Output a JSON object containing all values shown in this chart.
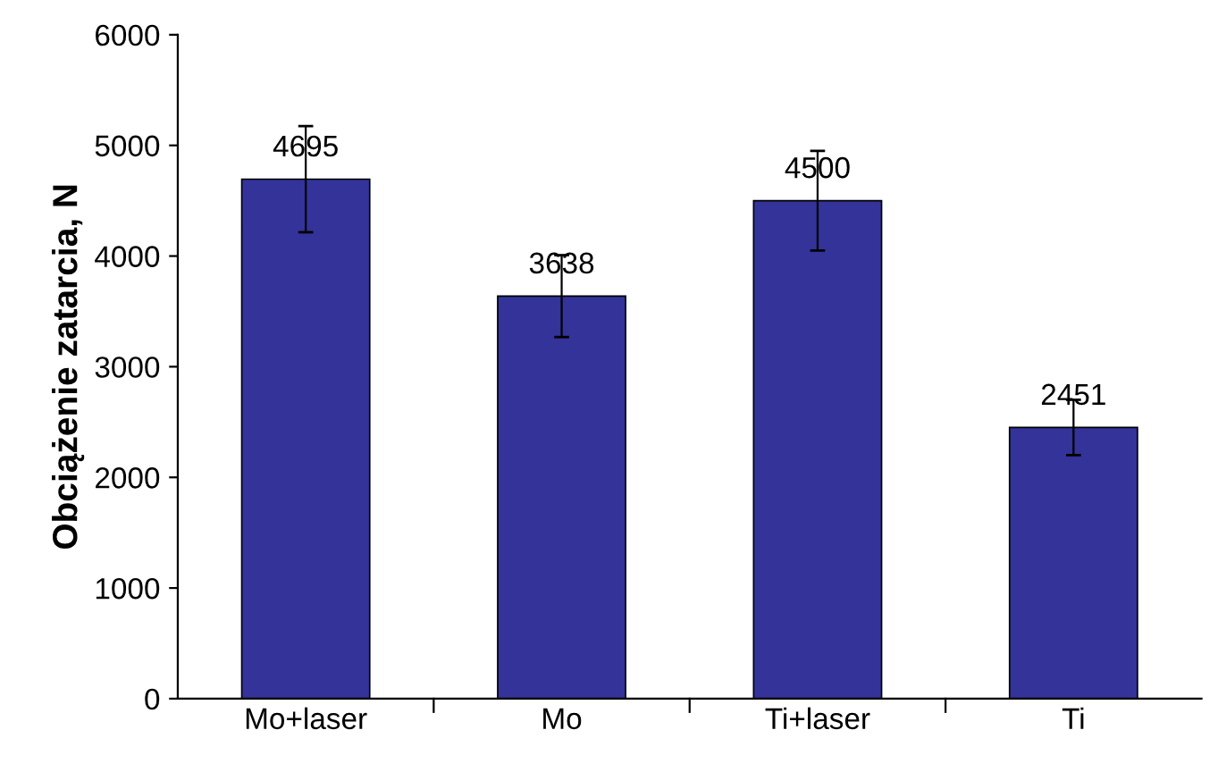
{
  "chart_data": {
    "type": "bar",
    "ylabel": "Obciążenie zatarcia, N",
    "categories": [
      "Mo+laser",
      "Mo",
      "Ti+laser",
      "Ti"
    ],
    "values": [
      4695,
      3638,
      4500,
      2451
    ],
    "errors": [
      480,
      370,
      450,
      250
    ],
    "color": "#333399",
    "ylim": [
      0,
      6000
    ],
    "yticks": [
      0,
      1000,
      2000,
      3000,
      4000,
      5000,
      6000
    ],
    "data_labels": true,
    "grid": false,
    "legend": false
  }
}
